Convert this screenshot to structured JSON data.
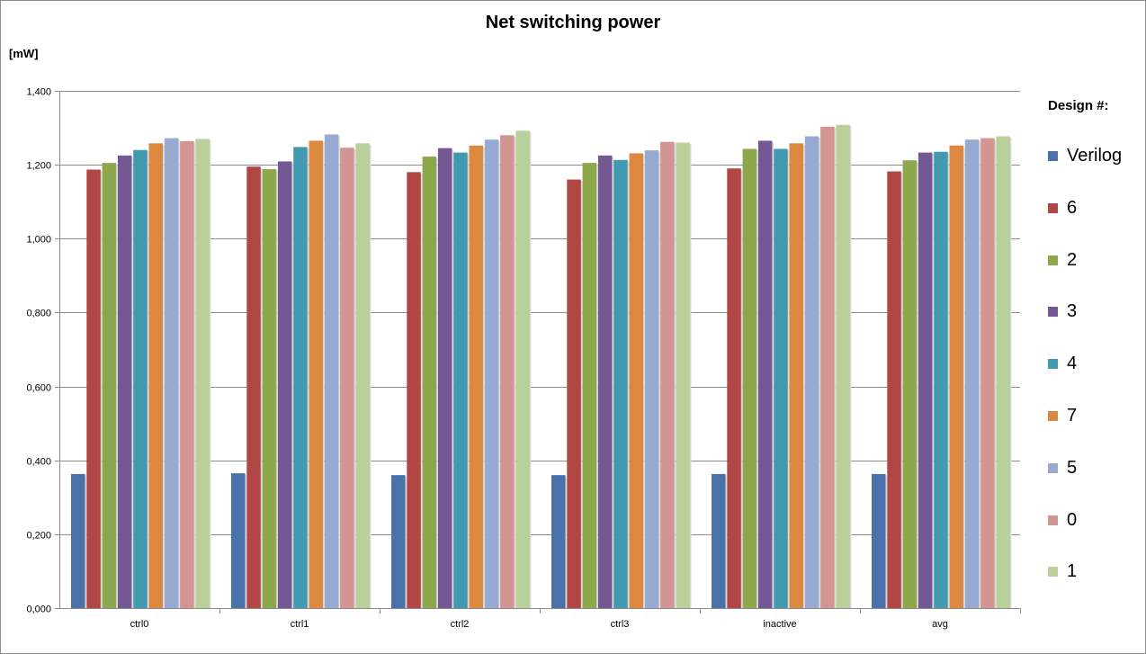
{
  "chart_data": {
    "type": "bar",
    "title": "Net switching power",
    "ylabel": "[mW]",
    "xlabel": "",
    "ylim": [
      0,
      1.4
    ],
    "yticks": [
      "0,000",
      "0,200",
      "0,400",
      "0,600",
      "0,800",
      "1,000",
      "1,200",
      "1,400"
    ],
    "ytick_values": [
      0,
      0.2,
      0.4,
      0.6,
      0.8,
      1.0,
      1.2,
      1.4
    ],
    "grid": true,
    "legend_title": "Design #:",
    "legend_position": "right",
    "categories": [
      "ctrl0",
      "ctrl1",
      "ctrl2",
      "ctrl3",
      "inactive",
      "avg"
    ],
    "series": [
      {
        "name": "Verilog",
        "color": "#4a72aa",
        "values": [
          0.363,
          0.365,
          0.36,
          0.36,
          0.363,
          0.363
        ]
      },
      {
        "name": "6",
        "color": "#b14744",
        "values": [
          1.187,
          1.195,
          1.18,
          1.16,
          1.19,
          1.182
        ]
      },
      {
        "name": "2",
        "color": "#8da84c",
        "values": [
          1.205,
          1.188,
          1.222,
          1.205,
          1.243,
          1.212
        ]
      },
      {
        "name": "3",
        "color": "#735893",
        "values": [
          1.225,
          1.209,
          1.245,
          1.225,
          1.265,
          1.233
        ]
      },
      {
        "name": "4",
        "color": "#4299b0",
        "values": [
          1.24,
          1.248,
          1.233,
          1.213,
          1.243,
          1.235
        ]
      },
      {
        "name": "7",
        "color": "#dc8840",
        "values": [
          1.258,
          1.265,
          1.252,
          1.231,
          1.258,
          1.252
        ]
      },
      {
        "name": "5",
        "color": "#97abd2",
        "values": [
          1.272,
          1.282,
          1.268,
          1.239,
          1.277,
          1.268
        ]
      },
      {
        "name": "0",
        "color": "#d29592",
        "values": [
          1.264,
          1.246,
          1.28,
          1.262,
          1.303,
          1.272
        ]
      },
      {
        "name": "1",
        "color": "#b9d09a",
        "values": [
          1.27,
          1.258,
          1.292,
          1.26,
          1.308,
          1.277
        ]
      }
    ]
  }
}
